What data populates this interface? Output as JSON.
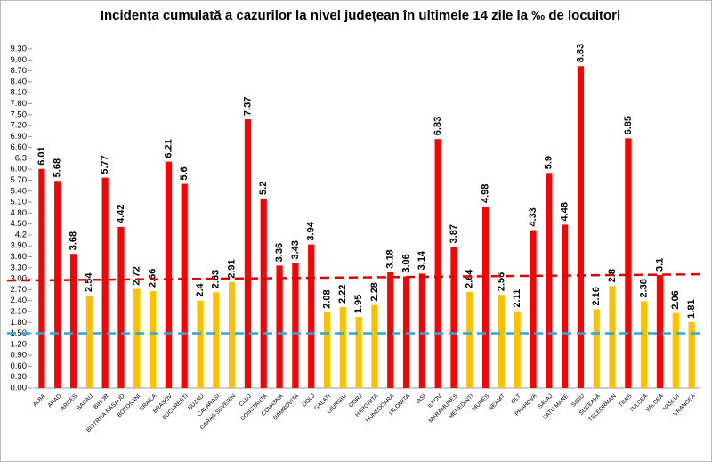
{
  "chart_data": {
    "type": "bar",
    "title": "Incidența cumulată a cazurilor la nivel județean în ultimele 14 zile la ‰ de locuitori",
    "categories": [
      "ALBA",
      "ARAD",
      "ARGES",
      "BACAU",
      "BIHOR",
      "BISTRITA NASAUD",
      "BOTOSANI",
      "BRAILA",
      "BRASOV",
      "BUCURESTI",
      "BUZAU",
      "CALARASI",
      "CARAS-SEVERIN",
      "CLUJ",
      "CONSTANTA",
      "COVASNA",
      "DAMBOVITA",
      "DOLJ",
      "GALATI",
      "GIURGIU",
      "GORJ",
      "HARGHITA",
      "HUNEDOARA",
      "IALOMITA",
      "IASI",
      "ILFOV",
      "MARAMURES",
      "MEHEDINTI",
      "MURES",
      "NEAMT",
      "OLT",
      "PRAHOVA",
      "SALAJ",
      "SATU MARE",
      "SIBIU",
      "SUCEAVA",
      "TELEORMAN",
      "TIMIS",
      "TULCEA",
      "VALCEA",
      "VASLUI",
      "VRANCEA"
    ],
    "values": [
      6.01,
      5.68,
      3.68,
      2.54,
      5.77,
      4.42,
      2.72,
      2.66,
      6.21,
      5.6,
      2.4,
      2.63,
      2.91,
      7.37,
      5.2,
      3.36,
      3.43,
      3.94,
      2.08,
      2.22,
      1.95,
      2.28,
      3.18,
      3.06,
      3.14,
      6.83,
      3.87,
      2.64,
      4.98,
      2.56,
      2.11,
      4.33,
      5.9,
      4.48,
      8.83,
      2.16,
      2.8,
      6.85,
      2.38,
      3.1,
      2.06,
      1.81
    ],
    "colors": [
      "#ff0000",
      "#ff0000",
      "#ff0000",
      "#ffc000",
      "#ff0000",
      "#ff0000",
      "#ffc000",
      "#ffc000",
      "#ff0000",
      "#ff0000",
      "#ffc000",
      "#ffc000",
      "#ffc000",
      "#ff0000",
      "#ff0000",
      "#ff0000",
      "#ff0000",
      "#ff0000",
      "#ffc000",
      "#ffc000",
      "#ffc000",
      "#ffc000",
      "#ff0000",
      "#ff0000",
      "#ff0000",
      "#ff0000",
      "#ff0000",
      "#ffc000",
      "#ff0000",
      "#ffc000",
      "#ffc000",
      "#ff0000",
      "#ff0000",
      "#ff0000",
      "#ff0000",
      "#ffc000",
      "#ffc000",
      "#ff0000",
      "#ffc000",
      "#ff0000",
      "#ffc000",
      "#ffc000"
    ],
    "ylim": [
      0,
      9.3
    ],
    "yticks": [
      {
        "value": 0,
        "label": "0.00"
      },
      {
        "value": 0.3,
        "label": "0.30"
      },
      {
        "value": 0.6,
        "label": "0.60"
      },
      {
        "value": 0.9,
        "label": "0.90"
      },
      {
        "value": 1.2,
        "label": "1.20"
      },
      {
        "value": 1.5,
        "label": "1.50"
      },
      {
        "value": 1.8,
        "label": "1.80"
      },
      {
        "value": 2.1,
        "label": "2.10"
      },
      {
        "value": 2.4,
        "label": "2.40"
      },
      {
        "value": 2.7,
        "label": "2.70"
      },
      {
        "value": 3,
        "label": "3.00"
      },
      {
        "value": 3.3,
        "label": "3.30"
      },
      {
        "value": 3.6,
        "label": "3.60"
      },
      {
        "value": 3.9,
        "label": "3.90"
      },
      4.2,
      {
        "value": 4.5,
        "label": "4.50"
      },
      {
        "value": 4.8,
        "label": "4.80"
      },
      {
        "value": 5.1,
        "label": "5.10"
      },
      {
        "value": 5.4,
        "label": "5.40"
      },
      {
        "value": 5.7,
        "label": "5.70"
      },
      {
        "value": 6,
        "label": "6.00"
      },
      6.3,
      {
        "value": 6.6,
        "label": "6.60"
      },
      {
        "value": 6.9,
        "label": "6.90"
      },
      {
        "value": 7.2,
        "label": "7.20"
      },
      {
        "value": 7.5,
        "label": "7.50"
      },
      {
        "value": 7.8,
        "label": "7.80"
      },
      {
        "value": 8.1,
        "label": "8.10"
      },
      {
        "value": 8.4,
        "label": "8.40"
      },
      {
        "value": 8.7,
        "label": "8.70"
      },
      {
        "value": 9,
        "label": "9.00"
      },
      {
        "value": 9.3,
        "label": "9.30"
      }
    ],
    "reference_lines": [
      {
        "values": [
          2.95,
          3.12
        ],
        "color": "#e00000"
      },
      {
        "values": [
          1.5,
          1.5
        ],
        "color": "#2aa7df"
      }
    ]
  }
}
